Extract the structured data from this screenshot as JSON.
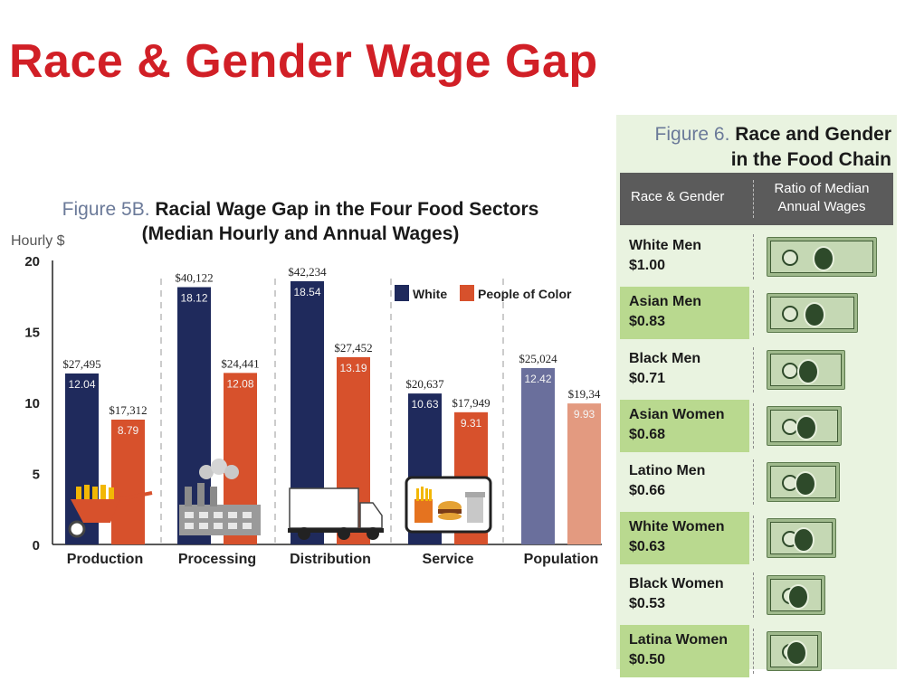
{
  "slide_title": "Race & Gender Wage Gap",
  "chart_data": [
    {
      "type": "bar",
      "title_label": "Figure 5B.",
      "title": "Racial Wage Gap in the Four Food Sectors",
      "subtitle": "(Median Hourly and Annual Wages)",
      "ylabel": "Hourly $",
      "ylim": [
        0,
        20
      ],
      "yticks": [
        0,
        5,
        10,
        15,
        20
      ],
      "categories": [
        "Production",
        "Processing",
        "Distribution",
        "Service",
        "Population"
      ],
      "legend": [
        "White",
        "People of Color"
      ],
      "legend_position": "top-right",
      "series": [
        {
          "name": "White",
          "color": "#1f2a5c",
          "values": [
            12.04,
            18.12,
            18.54,
            10.63,
            12.42
          ],
          "value_labels": [
            "12.04",
            "18.12",
            "18.54",
            "10.63",
            "12.42"
          ],
          "annual_labels": [
            "$27,495",
            "$40,122",
            "$42,234",
            "$20,637",
            "$25,024"
          ]
        },
        {
          "name": "People of Color",
          "color": "#d7512c",
          "values": [
            8.79,
            12.08,
            13.19,
            9.31,
            9.93
          ],
          "value_labels": [
            "8.79",
            "12.08",
            "13.19",
            "9.31",
            "9.93"
          ],
          "annual_labels": [
            "$17,312",
            "$24,441",
            "$27,452",
            "$17,949",
            "$19,34"
          ]
        }
      ],
      "population_colors": {
        "White": "#6a6f9c",
        "People of Color": "#e39a80"
      },
      "icons": [
        "wheelbarrow-icon",
        "factory-icon",
        "truck-icon",
        "fast-food-icon"
      ]
    },
    {
      "type": "table",
      "title_label": "Figure 6.",
      "title_line1": "Race and Gender",
      "title_line2": "in the Food Chain",
      "columns": [
        "Race & Gender",
        "Ratio of Median Annual Wages"
      ],
      "rows": [
        {
          "group": "White Men",
          "ratio": 1.0,
          "ratio_label": "$1.00"
        },
        {
          "group": "Asian Men",
          "ratio": 0.83,
          "ratio_label": "$0.83"
        },
        {
          "group": "Black Men",
          "ratio": 0.71,
          "ratio_label": "$0.71"
        },
        {
          "group": "Asian Women",
          "ratio": 0.68,
          "ratio_label": "$0.68"
        },
        {
          "group": "Latino Men",
          "ratio": 0.66,
          "ratio_label": "$0.66"
        },
        {
          "group": "White Women",
          "ratio": 0.63,
          "ratio_label": "$0.63"
        },
        {
          "group": "Black Women",
          "ratio": 0.53,
          "ratio_label": "$0.53"
        },
        {
          "group": "Latina Women",
          "ratio": 0.5,
          "ratio_label": "$0.50"
        }
      ],
      "icon": "dollar-bill-icon"
    }
  ]
}
